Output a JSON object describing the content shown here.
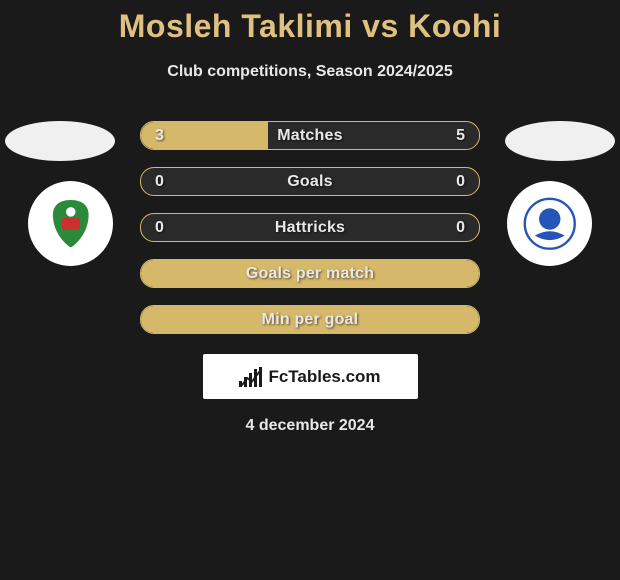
{
  "header": {
    "title": "Mosleh Taklimi vs Koohi",
    "subtitle": "Club competitions, Season 2024/2025"
  },
  "colors": {
    "background": "#1a1a1a",
    "accent": "#d6b86a",
    "title": "#e0c080",
    "text": "#e8e8e8",
    "logo_left_primary": "#2a8a3a",
    "logo_left_secondary": "#c93030",
    "logo_right_primary": "#2555b8"
  },
  "stats": {
    "rows": [
      {
        "label": "Matches",
        "left": "3",
        "right": "5",
        "left_pct": 37.5,
        "right_pct": 62.5,
        "mode": "split"
      },
      {
        "label": "Goals",
        "left": "0",
        "right": "0",
        "left_pct": 0,
        "right_pct": 0,
        "mode": "values"
      },
      {
        "label": "Hattricks",
        "left": "0",
        "right": "0",
        "left_pct": 0,
        "right_pct": 0,
        "mode": "values"
      },
      {
        "label": "Goals per match",
        "left": "",
        "right": "",
        "left_pct": 100,
        "right_pct": 0,
        "mode": "full"
      },
      {
        "label": "Min per goal",
        "left": "",
        "right": "",
        "left_pct": 100,
        "right_pct": 0,
        "mode": "full"
      }
    ]
  },
  "site": {
    "name": "FcTables.com"
  },
  "footer": {
    "date": "4 december 2024"
  }
}
